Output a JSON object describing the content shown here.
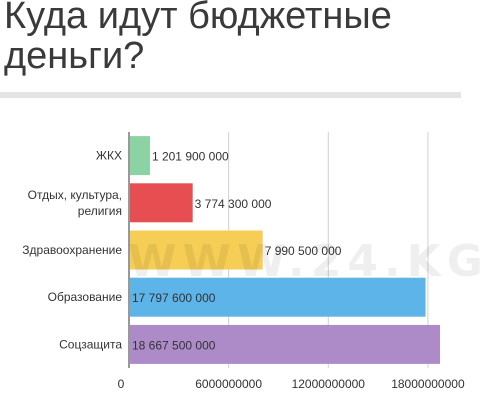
{
  "title": "Куда идут бюджетные деньги?",
  "watermark": "WWW.24.KG",
  "chart_data": {
    "type": "bar",
    "orientation": "horizontal",
    "title": "Куда идут бюджетные деньги?",
    "categories": [
      [
        "ЖКХ"
      ],
      [
        "Отдых, культура,",
        "религия"
      ],
      [
        "Здравоохранение"
      ],
      [
        "Образование"
      ],
      [
        "Соцзащита"
      ]
    ],
    "values": [
      1201900000,
      3774300000,
      7990500000,
      17797600000,
      18667500000
    ],
    "value_labels": [
      "1 201 900 000",
      "3 774 300 000",
      "7 990 500 000",
      "17 797 600 000",
      "18 667 500 000"
    ],
    "colors": [
      "#8cd3a4",
      "#e64e52",
      "#f6cd55",
      "#5cb4e8",
      "#ad8bc9"
    ],
    "xlim": [
      0,
      18667500000
    ],
    "xticks": [
      0,
      6000000000,
      12000000000,
      18000000000
    ],
    "xtick_labels": [
      "0",
      "6000000000",
      "12000000000",
      "18000000000"
    ],
    "grid": "vertical",
    "legend": "none"
  }
}
